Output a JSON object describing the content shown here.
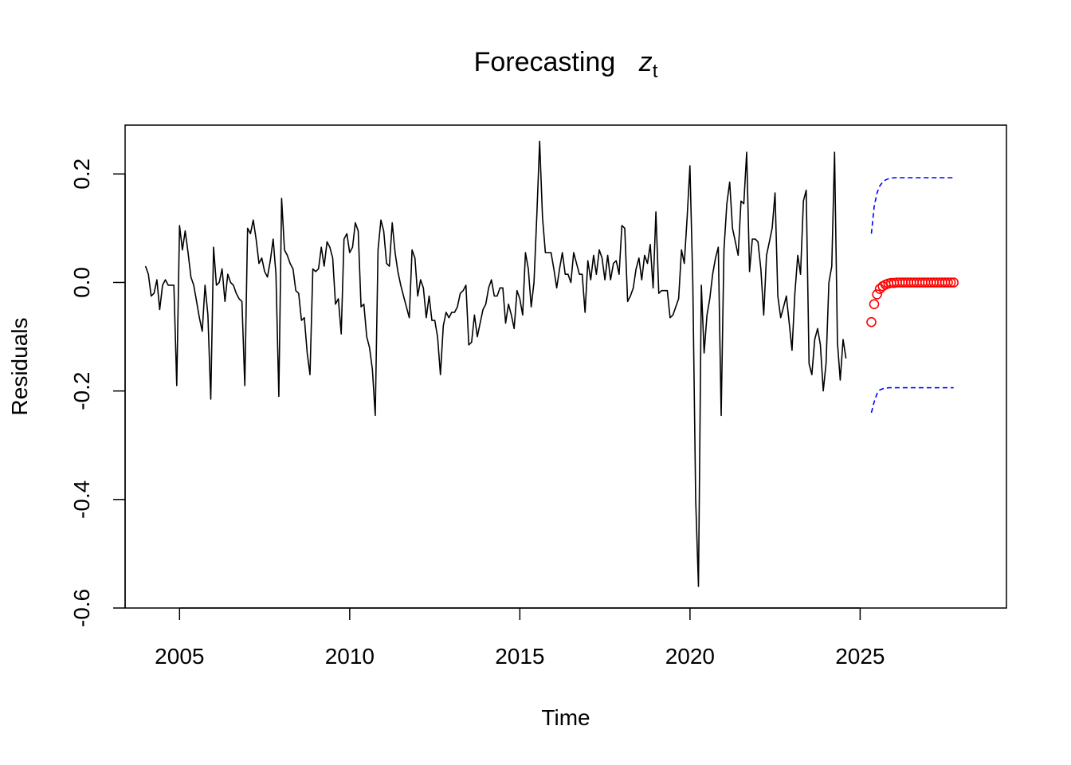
{
  "chart_data": {
    "type": "line",
    "title": "Forecasting",
    "title_math": "z",
    "title_subscript": "t",
    "xlabel": "Time",
    "ylabel": "Residuals",
    "xlim": [
      2003.4,
      2029.3
    ],
    "ylim": [
      -0.6,
      0.29
    ],
    "xticks": [
      2005,
      2010,
      2015,
      2020,
      2025
    ],
    "yticks": [
      -0.6,
      -0.4,
      -0.2,
      0.0,
      0.2
    ],
    "ytick_labels": [
      "-0.6",
      "-0.4",
      "-0.2",
      "0.0",
      "0.2"
    ],
    "grid": false,
    "colors": {
      "residuals": "#000000",
      "forecast": "#ff0000",
      "bounds": "#0000ff"
    },
    "series": [
      {
        "start": 2004.0,
        "step": 0.08333,
        "values": [
          0.03,
          0.015,
          -0.025,
          -0.02,
          0.005,
          -0.05,
          -0.005,
          0.005,
          -0.005,
          -0.005,
          -0.005,
          -0.19,
          0.105,
          0.06,
          0.095,
          0.055,
          0.01,
          -0.005,
          -0.035,
          -0.065,
          -0.09,
          -0.005,
          -0.06,
          -0.215,
          0.065,
          -0.005,
          0.0,
          0.025,
          -0.035,
          0.015,
          0.0,
          -0.005,
          -0.02,
          -0.03,
          -0.035,
          -0.19,
          0.1,
          0.09,
          0.115,
          0.08,
          0.035,
          0.045,
          0.02,
          0.01,
          0.04,
          0.08,
          0.015,
          -0.21,
          0.155,
          0.06,
          0.05,
          0.035,
          0.025,
          -0.015,
          -0.02,
          -0.07,
          -0.065,
          -0.13,
          -0.17,
          0.025,
          0.02,
          0.025,
          0.065,
          0.03,
          0.075,
          0.065,
          0.045,
          -0.04,
          -0.03,
          -0.095,
          0.08,
          0.09,
          0.055,
          0.065,
          0.11,
          0.095,
          -0.045,
          -0.04,
          -0.1,
          -0.12,
          -0.16,
          -0.245,
          0.06,
          0.115,
          0.095,
          0.035,
          0.03,
          0.11,
          0.055,
          0.02,
          -0.005,
          -0.025,
          -0.045,
          -0.065,
          0.06,
          0.045,
          -0.025,
          0.005,
          -0.01,
          -0.065,
          -0.025,
          -0.07,
          -0.07,
          -0.1,
          -0.17,
          -0.08,
          -0.055,
          -0.065,
          -0.055,
          -0.055,
          -0.045,
          -0.02,
          -0.015,
          -0.005,
          -0.115,
          -0.11,
          -0.06,
          -0.1,
          -0.075,
          -0.05,
          -0.04,
          -0.01,
          0.005,
          -0.025,
          -0.025,
          -0.01,
          -0.01,
          -0.075,
          -0.04,
          -0.06,
          -0.085,
          -0.015,
          -0.03,
          -0.06,
          0.055,
          0.025,
          -0.045,
          0.0,
          0.125,
          0.26,
          0.12,
          0.055,
          0.055,
          0.055,
          0.025,
          -0.01,
          0.025,
          0.055,
          0.015,
          0.015,
          0.0,
          0.055,
          0.035,
          0.015,
          0.015,
          -0.055,
          0.04,
          0.005,
          0.05,
          0.015,
          0.06,
          0.045,
          0.005,
          0.05,
          0.005,
          0.035,
          0.04,
          0.015,
          0.105,
          0.1,
          -0.035,
          -0.025,
          -0.01,
          0.025,
          0.045,
          0.005,
          0.05,
          0.035,
          0.07,
          -0.01,
          0.13,
          -0.02,
          -0.015,
          -0.015,
          -0.015,
          -0.065,
          -0.06,
          -0.045,
          -0.03,
          0.06,
          0.035,
          0.12,
          0.215,
          0.0,
          -0.4,
          -0.56,
          -0.005,
          -0.13,
          -0.06,
          -0.03,
          0.015,
          0.045,
          0.065,
          -0.245,
          0.06,
          0.145,
          0.185,
          0.1,
          0.075,
          0.05,
          0.15,
          0.145,
          0.24,
          0.02,
          0.08,
          0.08,
          0.075,
          0.025,
          -0.06,
          0.05,
          0.075,
          0.1,
          0.165,
          -0.025,
          -0.065,
          -0.045,
          -0.025,
          -0.075,
          -0.125,
          -0.02,
          0.05,
          0.015,
          0.15,
          0.17,
          -0.15,
          -0.17,
          -0.105,
          -0.085,
          -0.115,
          -0.2,
          -0.15,
          0.0,
          0.03,
          0.24,
          -0.11,
          -0.18,
          -0.105,
          -0.14
        ]
      },
      {
        "start": 2025.33,
        "step": 0.08333,
        "forecast": [
          -0.073,
          -0.04,
          -0.022,
          -0.012,
          -0.007,
          -0.004,
          -0.002,
          -0.001,
          -0.001,
          0.0,
          0.0,
          0.0,
          0.0,
          0.0,
          0.0,
          0.0,
          0.0,
          0.0,
          0.0,
          0.0,
          0.0,
          0.0,
          0.0,
          0.0,
          0.0,
          0.0,
          0.0,
          0.0,
          0.0,
          0.0
        ],
        "upper": [
          0.09,
          0.14,
          0.165,
          0.178,
          0.185,
          0.189,
          0.191,
          0.192,
          0.193,
          0.193,
          0.193,
          0.193,
          0.193,
          0.193,
          0.193,
          0.193,
          0.193,
          0.193,
          0.193,
          0.193,
          0.193,
          0.193,
          0.193,
          0.193,
          0.193,
          0.193,
          0.193,
          0.193,
          0.193,
          0.193
        ],
        "lower": [
          -0.24,
          -0.22,
          -0.205,
          -0.198,
          -0.196,
          -0.195,
          -0.194,
          -0.194,
          -0.194,
          -0.194,
          -0.194,
          -0.194,
          -0.194,
          -0.194,
          -0.194,
          -0.194,
          -0.194,
          -0.194,
          -0.194,
          -0.194,
          -0.194,
          -0.194,
          -0.194,
          -0.194,
          -0.194,
          -0.194,
          -0.194,
          -0.194,
          -0.194,
          -0.194
        ]
      }
    ]
  }
}
